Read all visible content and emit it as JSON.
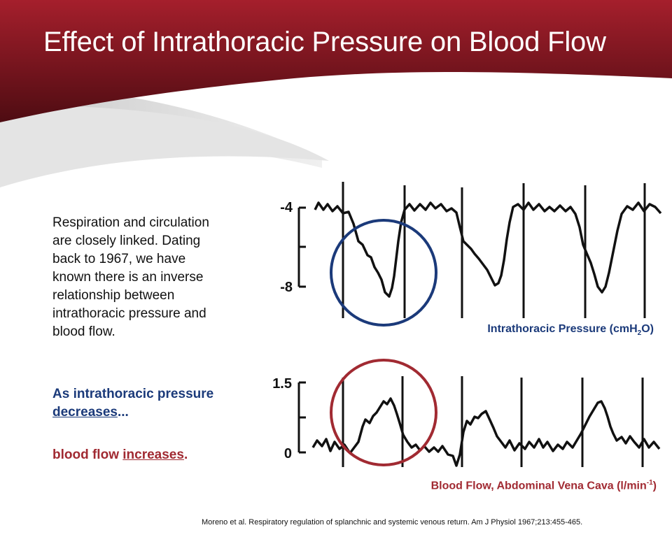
{
  "header": {
    "title": "Effect of Intrathoracic Pressure on Blood Flow"
  },
  "body": {
    "paragraph": "Respiration and circulation are closely linked. Dating back to 1967, we have known there is an inverse relationship between intrathoracic pressure and blood flow.",
    "emphasis1_prefix": "As intrathoracic pressure ",
    "emphasis1_keyword": "decreases",
    "emphasis1_suffix": "...",
    "emphasis2_prefix": "blood flow ",
    "emphasis2_keyword": "increases",
    "emphasis2_suffix": "."
  },
  "figure": {
    "top_axis_ticks": [
      "-4",
      "-8"
    ],
    "bottom_axis_ticks": [
      "1.5",
      "0"
    ],
    "top_label_main": "Intrathoracic Pressure (cmH",
    "top_label_sub": "2",
    "top_label_end": "O)",
    "bottom_label_main": "Blood Flow, Abdominal Vena Cava (l/min",
    "bottom_label_sup": "-1",
    "bottom_label_end": ")"
  },
  "citation": "Moreno et al. Respiratory regulation of splanchnic and systemic venous return.  Am J Physiol 1967;213:455-465.",
  "colors": {
    "header_dark": "#5a0f16",
    "header_light": "#a51f2c",
    "accent_blue": "#1b3a7a",
    "accent_red": "#a12a32",
    "swoosh_gray": "#d3d3d3"
  }
}
